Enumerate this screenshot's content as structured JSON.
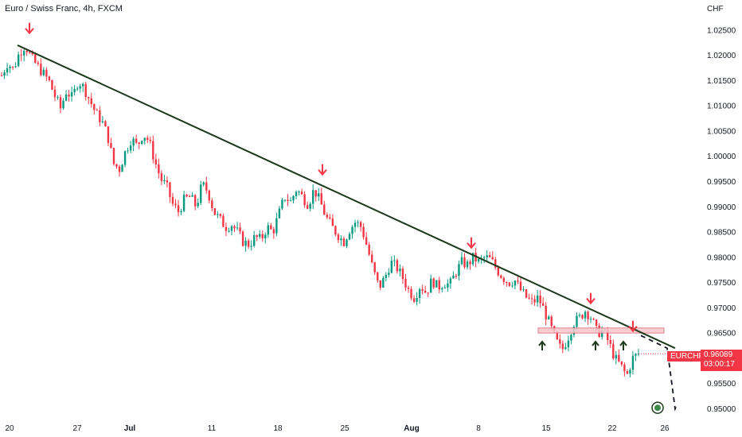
{
  "header": {
    "title": "Euro / Swiss Franc, 4h, FXCM",
    "currency": "CHF"
  },
  "chart_data": {
    "type": "candlestick",
    "symbol": "EURCHF",
    "last_price": "0.96089",
    "countdown": "03:00:17",
    "y_ticks": [
      "1.02500",
      "1.02000",
      "1.01500",
      "1.01000",
      "1.00500",
      "1.00000",
      "0.99500",
      "0.99000",
      "0.98500",
      "0.98000",
      "0.97500",
      "0.97000",
      "0.96500",
      "0.96000",
      "0.95500",
      "0.95000"
    ],
    "y_range": [
      0.9485,
      1.0275
    ],
    "x_ticks": [
      {
        "label": "20",
        "bold": false
      },
      {
        "label": "27",
        "bold": false
      },
      {
        "label": "Jul",
        "bold": true
      },
      {
        "label": "11",
        "bold": false
      },
      {
        "label": "18",
        "bold": false
      },
      {
        "label": "25",
        "bold": false
      },
      {
        "label": "Aug",
        "bold": true
      },
      {
        "label": "8",
        "bold": false
      },
      {
        "label": "15",
        "bold": false
      },
      {
        "label": "22",
        "bold": false
      },
      {
        "label": "26",
        "bold": false
      }
    ],
    "price_path": [
      1.016,
      1.0185,
      1.0172,
      1.0205,
      1.022,
      1.0195,
      1.018,
      1.0165,
      1.015,
      1.012,
      1.0095,
      1.013,
      1.0115,
      1.015,
      1.0135,
      1.011,
      1.0085,
      1.007,
      1.004,
      0.9985,
      0.9975,
      1.001,
      1.0035,
      1.002,
      1.0045,
      1.003,
      0.999,
      0.9955,
      0.994,
      0.9905,
      0.989,
      0.9915,
      0.992,
      0.99,
      0.9945,
      0.993,
      0.989,
      0.9875,
      0.986,
      0.9865,
      0.985,
      0.983,
      0.9825,
      0.984,
      0.9835,
      0.986,
      0.985,
      0.9885,
      0.992,
      0.991,
      0.9935,
      0.992,
      0.9905,
      0.9935,
      0.991,
      0.988,
      0.986,
      0.9845,
      0.983,
      0.9855,
      0.987,
      0.986,
      0.982,
      0.9775,
      0.974,
      0.976,
      0.979,
      0.978,
      0.976,
      0.9735,
      0.972,
      0.9745,
      0.973,
      0.9755,
      0.974,
      0.975,
      0.9745,
      0.977,
      0.979,
      0.9785,
      0.98,
      0.979,
      0.98,
      0.9795,
      0.9775,
      0.976,
      0.975,
      0.9755,
      0.9735,
      0.972,
      0.971,
      0.972,
      0.9695,
      0.9665,
      0.9635,
      0.9615,
      0.964,
      0.967,
      0.968,
      0.9695,
      0.968,
      0.965,
      0.9655,
      0.963,
      0.96,
      0.9585,
      0.9565,
      0.96,
      0.9609
    ],
    "trendline": [
      [
        22,
        1.022
      ],
      [
        848,
        0.962
      ]
    ],
    "resistance_zone": [
      0.965,
      0.966
    ],
    "projection": [
      [
        805,
        0.9645
      ],
      [
        838,
        0.962
      ],
      [
        848,
        0.95
      ],
      [
        850,
        0.9507
      ]
    ]
  },
  "colors": {
    "up": "#089981",
    "down": "#f23645",
    "trend": "#1e3a1e",
    "zone_fill": "#f7c6cb",
    "zone_stroke": "#e06b77",
    "arrow_red": "#f23645",
    "arrow_dark": "#1e3a1e"
  },
  "markers": {
    "down_arrow_count": 5,
    "up_arrow_count": 3
  }
}
